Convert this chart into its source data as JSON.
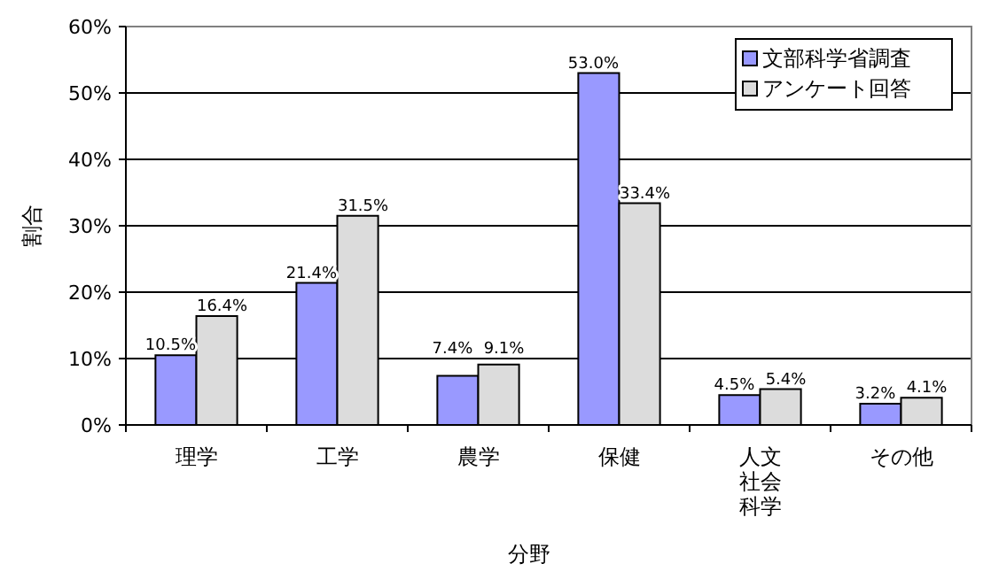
{
  "chart_data": {
    "type": "bar",
    "xlabel": "分野",
    "ylabel": "割合",
    "categories": [
      "理学",
      "工学",
      "農学",
      "保健",
      "人文社会科学",
      "その他"
    ],
    "series": [
      {
        "name": "文部科学省調査",
        "color": "#9999ff",
        "values": [
          10.5,
          21.4,
          7.4,
          53.0,
          4.5,
          3.2
        ],
        "value_labels": [
          "10.5%",
          "21.4%",
          "7.4%",
          "53.0%",
          "4.5%",
          "3.2%"
        ]
      },
      {
        "name": "アンケート回答",
        "color": "#dcdcdc",
        "values": [
          16.4,
          31.5,
          9.1,
          33.4,
          5.4,
          4.1
        ],
        "value_labels": [
          "16.4%",
          "31.5%",
          "9.1%",
          "33.4%",
          "5.4%",
          "4.1%"
        ]
      }
    ],
    "ylim": [
      0,
      60
    ],
    "yticks": [
      {
        "value": 0,
        "label": "0%"
      },
      {
        "value": 10,
        "label": "10%"
      },
      {
        "value": 20,
        "label": "20%"
      },
      {
        "value": 30,
        "label": "30%"
      },
      {
        "value": 40,
        "label": "40%"
      },
      {
        "value": 50,
        "label": "50%"
      },
      {
        "value": 60,
        "label": "60%"
      }
    ],
    "grid": "y",
    "legend": "top right"
  }
}
